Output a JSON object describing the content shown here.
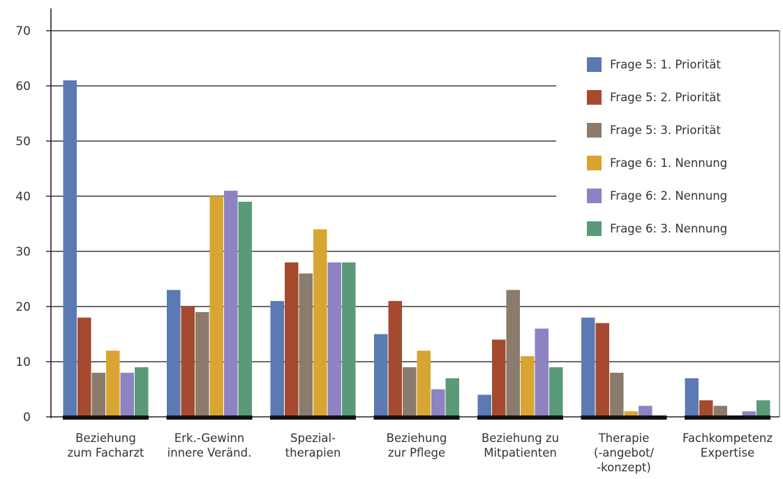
{
  "chart_data": {
    "type": "bar",
    "title": "",
    "xlabel": "",
    "ylabel": "",
    "ylim": [
      0,
      70
    ],
    "yticks": [
      0,
      10,
      20,
      30,
      40,
      50,
      60,
      70
    ],
    "grid": true,
    "legend_position": "top-right",
    "categories": [
      [
        "Beziehung",
        "zum Facharzt"
      ],
      [
        "Erk.-Gewinn",
        "innere Veränd."
      ],
      [
        "Spezial-",
        "therapien"
      ],
      [
        "Beziehung",
        "zur Pflege"
      ],
      [
        "Beziehung zu",
        "Mitpatienten"
      ],
      [
        "Therapie",
        "(-angebot/",
        "-konzept)"
      ],
      [
        "Fachkompetenz",
        "Expertise"
      ]
    ],
    "series": [
      {
        "name": "Frage 5: 1. Priorität",
        "color": "#5b7ab3",
        "values": [
          61,
          23,
          21,
          15,
          4,
          18,
          7
        ]
      },
      {
        "name": "Frage 5: 2. Priorität",
        "color": "#a54a2f",
        "values": [
          18,
          20,
          28,
          21,
          14,
          17,
          3
        ]
      },
      {
        "name": "Frage 5: 3. Priorität",
        "color": "#8a7b6c",
        "values": [
          8,
          19,
          26,
          9,
          23,
          8,
          2
        ]
      },
      {
        "name": "Frage 6: 1. Nennung",
        "color": "#d9a532",
        "values": [
          12,
          40,
          34,
          12,
          11,
          1,
          0
        ]
      },
      {
        "name": "Frage 6: 2. Nennung",
        "color": "#8e83c2",
        "values": [
          8,
          41,
          28,
          5,
          16,
          2,
          1
        ]
      },
      {
        "name": "Frage 6: 3. Nennung",
        "color": "#5a9a78",
        "values": [
          9,
          39,
          28,
          7,
          9,
          0,
          3
        ]
      }
    ]
  }
}
